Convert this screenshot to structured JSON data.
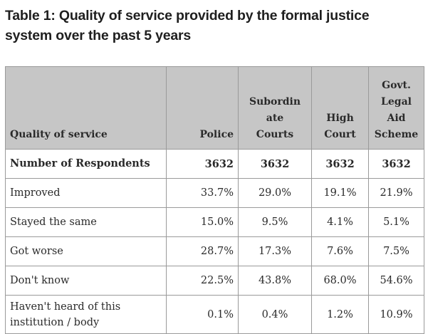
{
  "caption": {
    "line1": "Table 1: Quality of service provided by the formal justice",
    "line2": "system over the past 5 years"
  },
  "headers": {
    "quality": "Quality of service",
    "police": "Police",
    "subordinate_courts": "Subordin ate Courts",
    "high_court": "High Court",
    "legal_aid": "Govt. Legal Aid Scheme"
  },
  "rows": [
    {
      "label": "Number of Respondents",
      "police": "3632",
      "subordinate": "3632",
      "high": "3632",
      "aid": "3632"
    },
    {
      "label": "Improved",
      "police": "33.7%",
      "subordinate": "29.0%",
      "high": "19.1%",
      "aid": "21.9%"
    },
    {
      "label": "Stayed the same",
      "police": "15.0%",
      "subordinate": "9.5%",
      "high": "4.1%",
      "aid": "5.1%"
    },
    {
      "label": "Got worse",
      "police": "28.7%",
      "subordinate": "17.3%",
      "high": "7.6%",
      "aid": "7.5%"
    },
    {
      "label": "Don't know",
      "police": "22.5%",
      "subordinate": "43.8%",
      "high": "68.0%",
      "aid": "54.6%"
    },
    {
      "label": "Haven't heard of this institution / body",
      "police": "0.1%",
      "subordinate": "0.4%",
      "high": "1.2%",
      "aid": "10.9%"
    }
  ]
}
